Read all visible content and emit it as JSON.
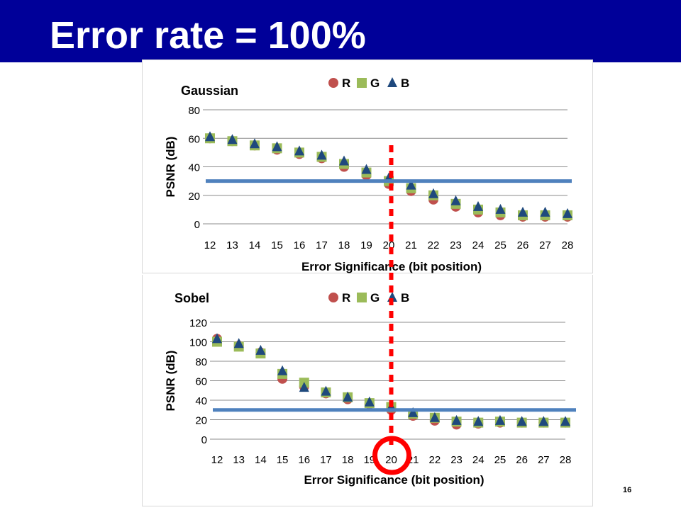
{
  "slide": {
    "title": "Error rate = 100%",
    "page_number": "16"
  },
  "colors": {
    "title_bar": "#000099",
    "series_R": "#c0504d",
    "series_G": "#9bbb59",
    "series_B": "#1f497d",
    "threshold_line": "#4f81bd",
    "marker_dotted": "#ff0000",
    "marker_circle": "#ff0000"
  },
  "annotations": {
    "threshold_psnr": 30,
    "highlight_bit_position": 20
  },
  "chart_data": [
    {
      "type": "scatter",
      "title": "Gaussian",
      "xlabel": "Error Significance  (bit position)",
      "ylabel": "PSNR (dB)",
      "x": [
        12,
        13,
        14,
        15,
        16,
        17,
        18,
        19,
        20,
        21,
        22,
        23,
        24,
        25,
        26,
        27,
        28
      ],
      "xlim": [
        12,
        28
      ],
      "ylim": [
        0,
        80
      ],
      "yticks": [
        0,
        20,
        40,
        60,
        80
      ],
      "grid": true,
      "legend": "top-center",
      "series": [
        {
          "name": "R",
          "marker": "circle",
          "values": [
            60,
            58,
            55,
            52,
            49,
            46,
            40,
            34,
            28,
            23,
            17,
            12,
            8,
            6,
            5,
            5,
            5
          ]
        },
        {
          "name": "G",
          "marker": "square",
          "values": [
            60,
            58,
            55,
            53,
            50,
            47,
            42,
            36,
            30,
            25,
            20,
            14,
            10,
            8,
            6,
            6,
            6
          ]
        },
        {
          "name": "B",
          "marker": "triangle",
          "values": [
            61,
            59,
            56,
            54,
            51,
            48,
            44,
            38,
            32,
            27,
            21,
            16,
            12,
            10,
            8,
            8,
            7
          ]
        }
      ]
    },
    {
      "type": "scatter",
      "title": "Sobel",
      "xlabel": "Error Significance  (bit position)",
      "ylabel": "PSNR (dB)",
      "x": [
        12,
        13,
        14,
        15,
        16,
        17,
        18,
        19,
        20,
        21,
        22,
        23,
        24,
        25,
        26,
        27,
        28
      ],
      "xlim": [
        12,
        28
      ],
      "ylim": [
        0,
        120
      ],
      "yticks": [
        0,
        20,
        40,
        60,
        80,
        100,
        120
      ],
      "grid": true,
      "legend": "top-center",
      "series": [
        {
          "name": "R",
          "marker": "circle",
          "values": [
            103,
            96,
            89,
            62,
            54,
            47,
            41,
            36,
            30,
            24,
            19,
            15,
            16,
            17,
            17,
            17,
            17
          ]
        },
        {
          "name": "G",
          "marker": "square",
          "values": [
            100,
            95,
            88,
            67,
            58,
            48,
            43,
            37,
            33,
            26,
            22,
            18,
            17,
            18,
            17,
            17,
            17
          ]
        },
        {
          "name": "B",
          "marker": "triangle",
          "values": [
            103,
            98,
            91,
            70,
            53,
            49,
            43,
            38,
            33,
            27,
            22,
            19,
            18,
            19,
            18,
            18,
            18
          ]
        }
      ]
    }
  ]
}
